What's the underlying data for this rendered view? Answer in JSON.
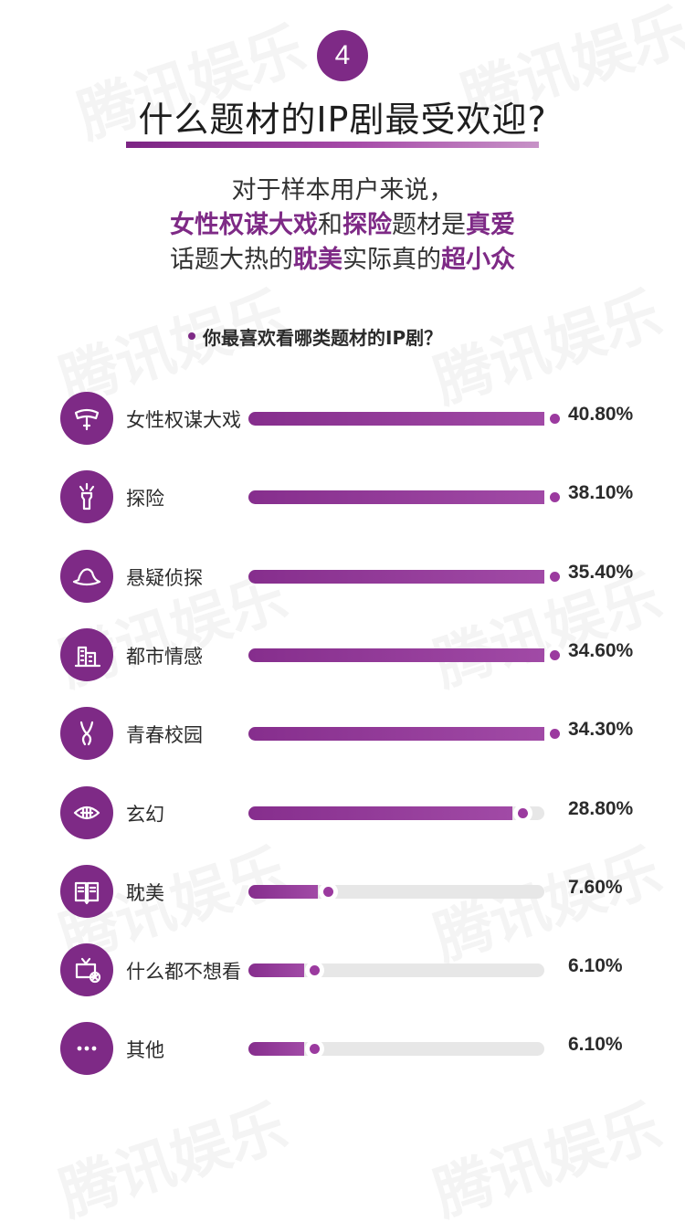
{
  "badge": "4",
  "title": "什么题材的IP剧最受欢迎?",
  "lead": {
    "line1": "对于样本用户来说，",
    "line2": [
      {
        "text": "女性权谋大戏",
        "hl": true
      },
      {
        "text": "和",
        "hl": false
      },
      {
        "text": "探险",
        "hl": true
      },
      {
        "text": "题材是",
        "hl": false
      },
      {
        "text": "真爱",
        "hl": true
      }
    ],
    "line3": [
      {
        "text": "话题大热的",
        "hl": false
      },
      {
        "text": "耽美",
        "hl": true
      },
      {
        "text": "实际真的",
        "hl": false
      },
      {
        "text": "超小众",
        "hl": true
      }
    ]
  },
  "watermark": "腾讯娱乐",
  "colors": {
    "accent": "#7e2a86",
    "track": "#e7e7e7"
  },
  "chart_data": {
    "type": "bar",
    "title": "你最喜欢看哪类题材的IP剧？",
    "orientation": "horizontal",
    "unit": "%",
    "xlim": [
      0,
      100
    ],
    "categories": [
      "女性权谋大戏",
      "探险",
      "悬疑侦探",
      "都市情感",
      "青春校园",
      "玄幻",
      "耽美",
      "什么都不想看",
      "其他"
    ],
    "values": [
      40.8,
      38.1,
      35.4,
      34.6,
      34.3,
      28.8,
      7.6,
      6.1,
      6.1
    ],
    "value_labels": [
      "40.80%",
      "38.10%",
      "35.40%",
      "34.60%",
      "34.30%",
      "28.80%",
      "7.60%",
      "6.10%",
      "6.10%"
    ],
    "icons": [
      "crown-icon",
      "flashlight-icon",
      "detective-hat-icon",
      "city-buildings-icon",
      "jump-rope-icon",
      "fantasy-eye-icon",
      "book-icon",
      "tv-off-icon",
      "more-dots-icon"
    ],
    "grid": false,
    "legend": "none"
  }
}
